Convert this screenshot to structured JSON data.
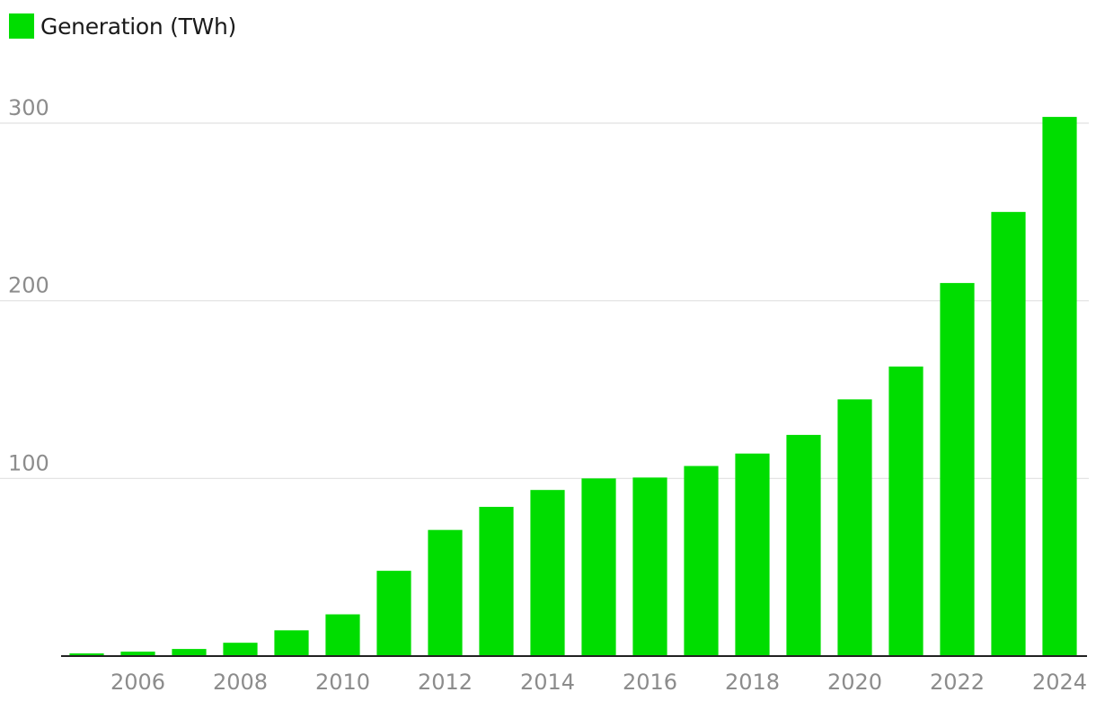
{
  "legend": {
    "label": "Generation (TWh)",
    "color": "#00dd00"
  },
  "chart_data": {
    "type": "bar",
    "categories": [
      "2005",
      "2006",
      "2007",
      "2008",
      "2009",
      "2010",
      "2011",
      "2012",
      "2013",
      "2014",
      "2015",
      "2016",
      "2017",
      "2018",
      "2019",
      "2020",
      "2021",
      "2022",
      "2023",
      "2024"
    ],
    "series": [
      {
        "name": "Generation (TWh)",
        "color": "#00dd00",
        "values": [
          1.5,
          2.5,
          4,
          7.5,
          14.5,
          23.5,
          48,
          71,
          84,
          93.5,
          100,
          100.5,
          107,
          114,
          124.5,
          144.5,
          163,
          210,
          250,
          303.5
        ]
      }
    ],
    "x_tick_labels": [
      "2006",
      "2008",
      "2010",
      "2012",
      "2014",
      "2016",
      "2018",
      "2020",
      "2022",
      "2024"
    ],
    "y_ticks": [
      100,
      200,
      300
    ],
    "ylim": [
      0,
      300
    ],
    "grid": true,
    "legend_position": "top-left",
    "title": "",
    "xlabel": "",
    "ylabel": ""
  }
}
